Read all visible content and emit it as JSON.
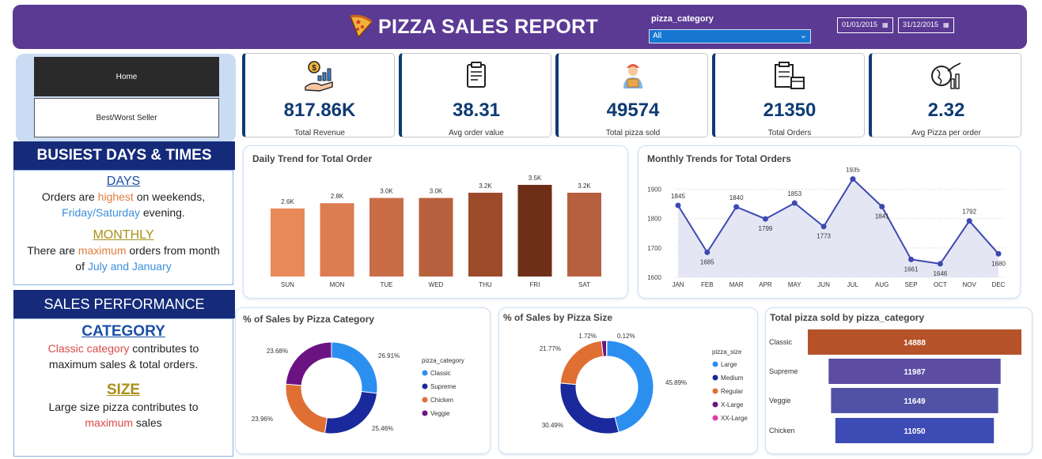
{
  "header": {
    "title": "PIZZA SALES REPORT",
    "slicer_label": "pizza_category",
    "slicer_value": "All",
    "date_from": "01/01/2015",
    "date_to": "31/12/2015",
    "background": "#5b3a94"
  },
  "nav": {
    "home": "Home",
    "best_worst": "Best/Worst Seller"
  },
  "kpis": [
    {
      "value": "817.86K",
      "label": "Total Revenue",
      "icon": "revenue-icon"
    },
    {
      "value": "38.31",
      "label": "Avg order value",
      "icon": "order-clipboard-icon"
    },
    {
      "value": "49574",
      "label": "Total pizza sold",
      "icon": "delivery-person-icon"
    },
    {
      "value": "21350",
      "label": "Total Orders",
      "icon": "order-boxes-icon"
    },
    {
      "value": "2.32",
      "label": "Avg Pizza per order",
      "icon": "global-chart-icon"
    }
  ],
  "busiest": {
    "header": "BUSIEST DAYS & TIMES",
    "days_title": "DAYS",
    "days_t1": "Orders are ",
    "days_h1": "highest",
    "days_t2": " on weekends,",
    "days_h2": "Friday/Saturday",
    "days_t3": " evening.",
    "monthly_title": "MONTHLY",
    "monthly_t1": "There are ",
    "monthly_h1": "maximum",
    "monthly_t2": " orders from month",
    "monthly_t3": "of ",
    "monthly_h2": "July and January"
  },
  "sales": {
    "header": "SALES PERFORMANCE",
    "category_title": "CATEGORY",
    "category_h1": "Classic category",
    "category_t1": " contributes to",
    "category_t2": "maximum sales & total orders.",
    "size_title": "SIZE",
    "size_t1": "Large size pizza contributes to",
    "size_h1": "maximum",
    "size_t2": " sales"
  },
  "chart_data": [
    {
      "type": "bar",
      "title": "Daily Trend for Total Order",
      "categories": [
        "SUN",
        "MON",
        "TUE",
        "WED",
        "THU",
        "FRI",
        "SAT"
      ],
      "values": [
        2.6,
        2.8,
        3.0,
        3.0,
        3.2,
        3.5,
        3.2
      ],
      "value_labels": [
        "2.6K",
        "2.8K",
        "3.0K",
        "3.0K",
        "3.2K",
        "3.5K",
        "3.2K"
      ],
      "colors": [
        "#e8895a",
        "#dc7c51",
        "#c96d47",
        "#b8613f",
        "#9b4a2a",
        "#6e2e17",
        "#b7603f"
      ],
      "ylim": [
        0,
        3.5
      ]
    },
    {
      "type": "area",
      "title": "Monthly Trends for Total Orders",
      "categories": [
        "JAN",
        "FEB",
        "MAR",
        "APR",
        "MAY",
        "JUN",
        "JUL",
        "AUG",
        "SEP",
        "OCT",
        "NOV",
        "DEC"
      ],
      "values": [
        1845,
        1685,
        1840,
        1799,
        1853,
        1773,
        1935,
        1841,
        1661,
        1646,
        1792,
        1680
      ],
      "yticks": [
        1600,
        1700,
        1800,
        1900
      ],
      "ylim": [
        1600,
        1950
      ],
      "color": "#3d49b0",
      "fill": "#e4e6f4"
    },
    {
      "type": "pie",
      "title": "% of Sales by Pizza Category",
      "legend_title": "pizza_category",
      "labels": [
        "Classic",
        "Supreme",
        "Chicken",
        "Veggie"
      ],
      "values": [
        26.91,
        25.46,
        23.96,
        23.68
      ],
      "value_labels": [
        "26.91%",
        "25.46%",
        "23.96%",
        "23.68%"
      ],
      "colors": [
        "#2b8ff0",
        "#1a2a9c",
        "#e06f33",
        "#6c1384"
      ]
    },
    {
      "type": "pie",
      "title": "% of Sales by Pizza Size",
      "legend_title": "pizza_size",
      "labels": [
        "Large",
        "Medium",
        "Regular",
        "X-Large",
        "XX-Large"
      ],
      "values": [
        45.89,
        30.49,
        21.77,
        1.72,
        0.12
      ],
      "value_labels": [
        "45.89%",
        "30.49%",
        "21.77%",
        "1.72%",
        "0.12%"
      ],
      "colors": [
        "#2b8ff0",
        "#1a2a9c",
        "#e06f33",
        "#6c1384",
        "#e03aa6"
      ]
    },
    {
      "type": "bar",
      "orientation": "horizontal",
      "title": "Total pizza sold by pizza_category",
      "categories": [
        "Classic",
        "Supreme",
        "Veggie",
        "Chicken"
      ],
      "values": [
        14888,
        11987,
        11649,
        11050
      ],
      "colors": [
        "#b5522a",
        "#5c4da2",
        "#5151a5",
        "#3c4cb4"
      ]
    }
  ]
}
